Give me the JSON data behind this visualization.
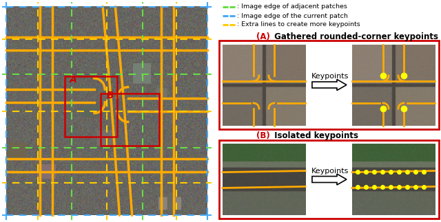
{
  "legend_items": [
    {
      "label": ": Image edge of adjacent patches",
      "color": "#66dd44",
      "linestyle": "dashed"
    },
    {
      "label": ": Image edge of the current patch",
      "color": "#44aaff",
      "linestyle": "dashed"
    },
    {
      "label": ": Extra lines to create more keypoints",
      "color": "#ffcc00",
      "linestyle": "dashed"
    }
  ],
  "section_A_prefix": "(A)",
  "section_A_text": " Gathered rounded-corner keypoints",
  "section_B_prefix": "(B)",
  "section_B_text": " Isolated keypoints",
  "keypoints_label": "Keypoints",
  "label_color": "#cc0000",
  "box_color": "#cc0000",
  "background_color": "#ffffff",
  "road_color": "#ffaa00",
  "road_lw": 2.5,
  "fig_width": 6.4,
  "fig_height": 3.23,
  "dpi": 100,
  "green_color": "#66dd44",
  "blue_color": "#44aaff",
  "yellow_color": "#ffcc00"
}
